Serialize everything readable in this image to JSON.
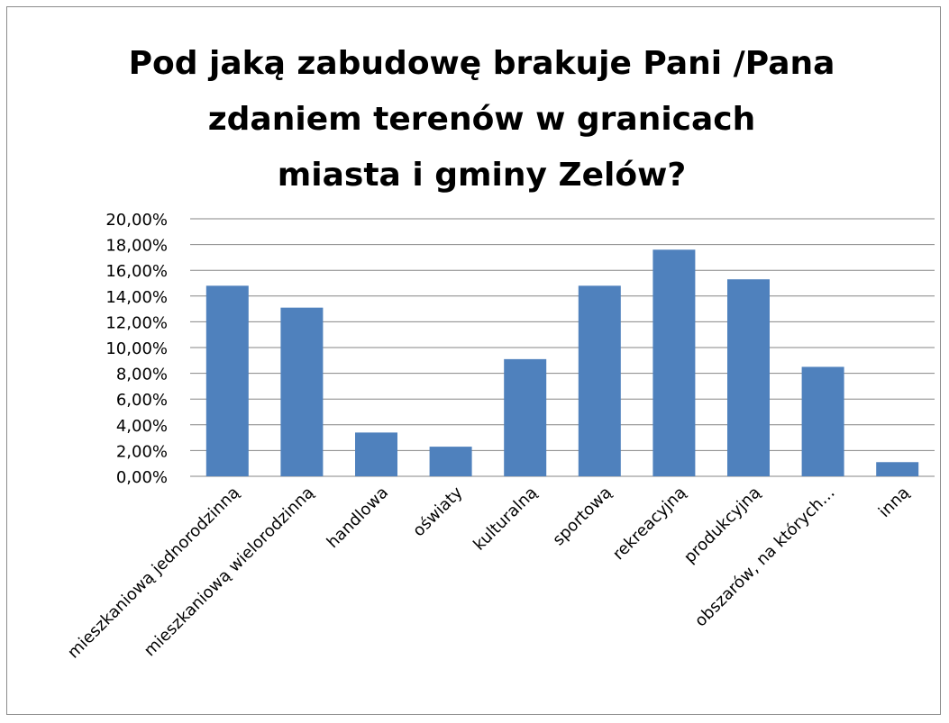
{
  "chart_data": {
    "type": "bar",
    "title_lines": [
      "Pod jaką zabudowę brakuje Pani /Pana",
      "zdaniem terenów w granicach",
      "miasta i gminy Zelów?"
    ],
    "categories": [
      "mieszkaniową jednorodzinną",
      "mieszkaniową wielorodzinną",
      "handlowa",
      "oświaty",
      "kulturalną",
      "sportową",
      "rekreacyjną",
      "produkcyjną",
      "obszarów, na których…",
      "inną"
    ],
    "values": [
      14.8,
      13.1,
      3.4,
      2.3,
      9.1,
      14.8,
      17.6,
      15.3,
      8.5,
      1.1
    ],
    "ylim": [
      0,
      20
    ],
    "ytick_step": 2,
    "ytick_labels": [
      "0,00%",
      "2,00%",
      "4,00%",
      "6,00%",
      "8,00%",
      "10,00%",
      "12,00%",
      "14,00%",
      "16,00%",
      "18,00%",
      "20,00%"
    ],
    "grid": true,
    "legend": "none",
    "bar_color": "#4f81bd",
    "grid_color": "#868686",
    "xlabel": "",
    "ylabel": ""
  }
}
